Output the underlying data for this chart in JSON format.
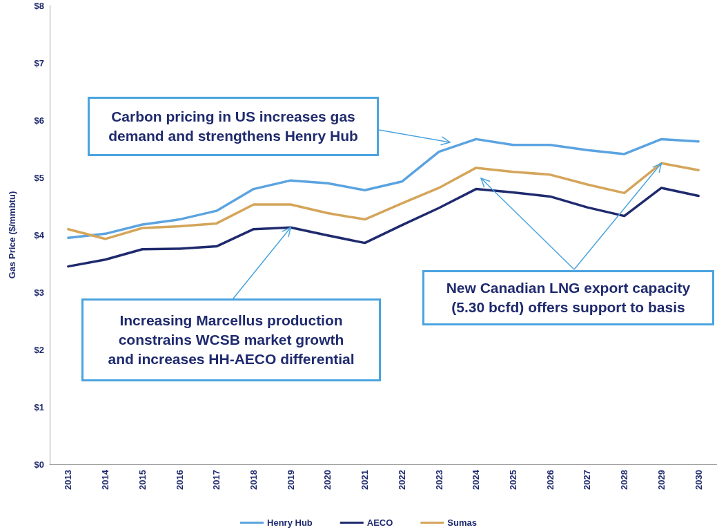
{
  "chart_data": {
    "type": "line",
    "ylabel": "Gas Price ($/mmbtu)",
    "categories": [
      "2013",
      "2014",
      "2015",
      "2016",
      "2017",
      "2018",
      "2019",
      "2020",
      "2021",
      "2022",
      "2023",
      "2024",
      "2025",
      "2026",
      "2027",
      "2028",
      "2029",
      "2030"
    ],
    "series": [
      {
        "name": "Henry Hub",
        "color": "#5ba3e0",
        "values": [
          3.95,
          4.02,
          4.18,
          4.27,
          4.42,
          4.8,
          4.95,
          4.9,
          4.78,
          4.93,
          5.45,
          5.67,
          5.57,
          5.57,
          5.48,
          5.41,
          5.67,
          5.63
        ]
      },
      {
        "name": "AECO",
        "color": "#1f2a6e",
        "values": [
          3.45,
          3.57,
          3.75,
          3.76,
          3.8,
          4.1,
          4.13,
          3.99,
          3.86,
          4.17,
          4.47,
          4.8,
          4.74,
          4.67,
          4.48,
          4.33,
          4.82,
          4.68
        ]
      },
      {
        "name": "Sumas",
        "color": "#d4a55a",
        "values": [
          4.1,
          3.93,
          4.12,
          4.15,
          4.2,
          4.53,
          4.53,
          4.38,
          4.27,
          4.55,
          4.82,
          5.17,
          5.1,
          5.05,
          4.88,
          4.73,
          5.25,
          5.13
        ]
      }
    ],
    "ylim": [
      0,
      8
    ],
    "yticks": [
      {
        "value": 0,
        "label": "$0"
      },
      {
        "value": 1,
        "label": "$1"
      },
      {
        "value": 2,
        "label": "$2"
      },
      {
        "value": 3,
        "label": "$3"
      },
      {
        "value": 4,
        "label": "$4"
      },
      {
        "value": 5,
        "label": "$5"
      },
      {
        "value": 6,
        "label": "$6"
      },
      {
        "value": 7,
        "label": "$7"
      },
      {
        "value": 8,
        "label": "$8"
      }
    ],
    "grid": false,
    "legend": "bottom",
    "marker": "none",
    "line_style": "solid",
    "annotations": [
      "Carbon pricing in US increases gas\ndemand and strengthens Henry Hub",
      {
        "text": "Increasing Marcellus production\nconstrains WCSB market growth\nand increases HH-AECO differential",
        "x": "2019",
        "y": 4.13
      },
      {
        "text": "New Canadian LNG export capacity\n(5.30 bcfd) offers support to basis",
        "x": "2029",
        "y": 5.25
      }
    ]
  }
}
